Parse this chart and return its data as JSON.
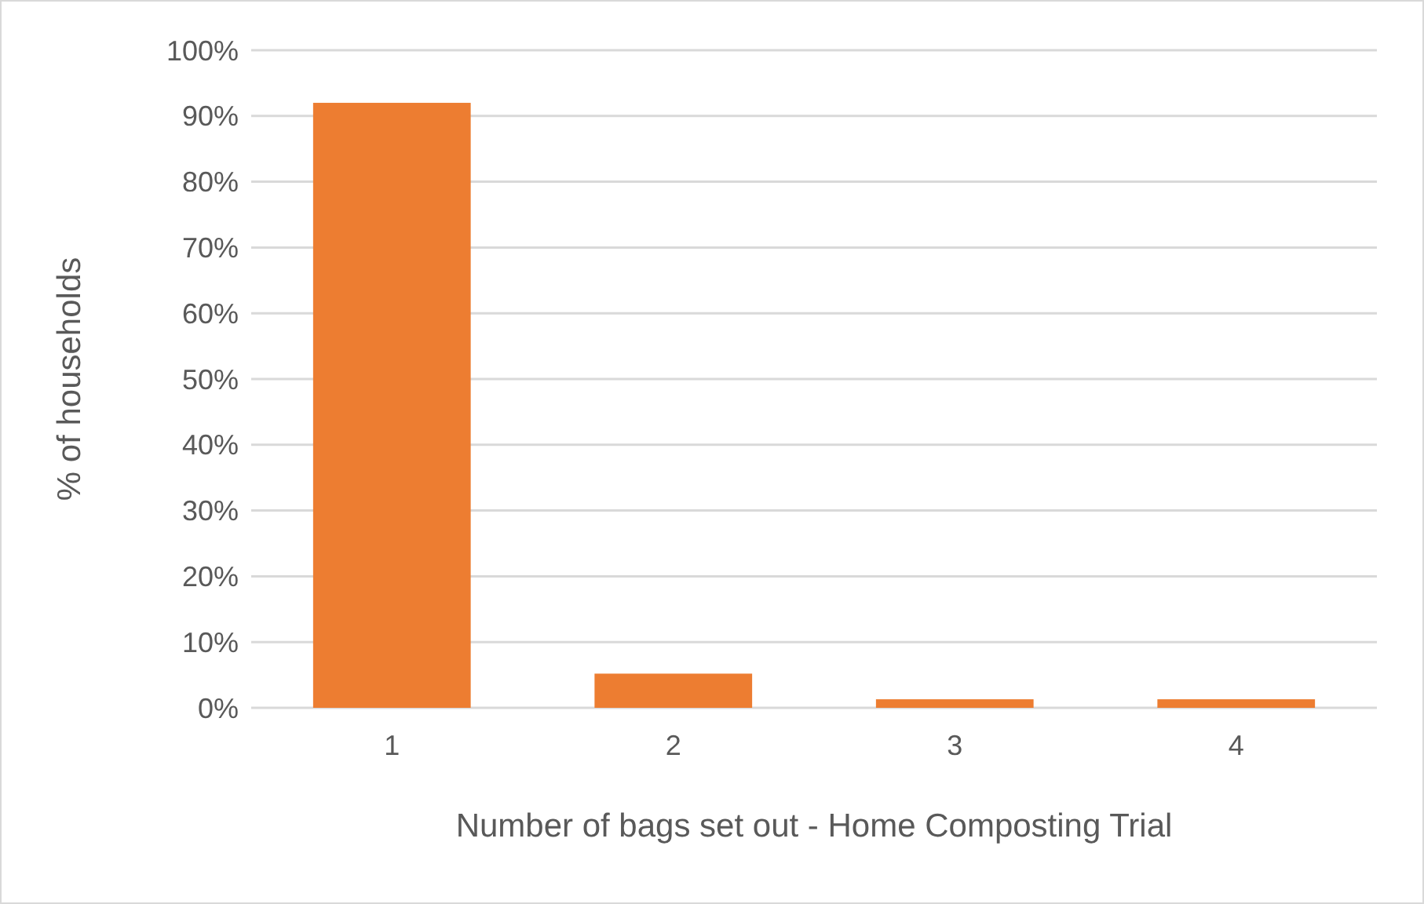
{
  "chart_data": {
    "type": "bar",
    "xlabel": "Number of bags set out - Home Composting Trial",
    "ylabel": "% of households",
    "categories": [
      "1",
      "2",
      "3",
      "4"
    ],
    "values": [
      92,
      5.2,
      1.3,
      1.3
    ],
    "color": "#ed7d31",
    "ylim": [
      0,
      100
    ],
    "yticks": [
      {
        "value": 0,
        "label": "0%"
      },
      {
        "value": 10,
        "label": "10%"
      },
      {
        "value": 20,
        "label": "20%"
      },
      {
        "value": 30,
        "label": "30%"
      },
      {
        "value": 40,
        "label": "40%"
      },
      {
        "value": 50,
        "label": "50%"
      },
      {
        "value": 60,
        "label": "60%"
      },
      {
        "value": 70,
        "label": "70%"
      },
      {
        "value": 80,
        "label": "80%"
      },
      {
        "value": 90,
        "label": "90%"
      },
      {
        "value": 100,
        "label": "100%"
      }
    ],
    "grid": "y"
  }
}
